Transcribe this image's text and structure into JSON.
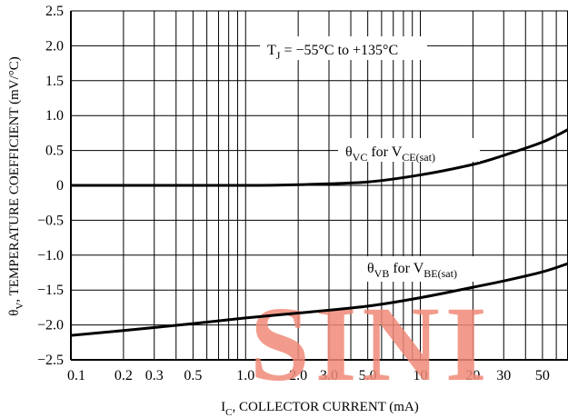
{
  "watermark": "SINI",
  "chart_data": {
    "type": "line",
    "x_scale": "log",
    "xlim": [
      0.1,
      70
    ],
    "ylim": [
      -2.5,
      2.5
    ],
    "grid": true,
    "xlabel": {
      "main": "I",
      "sub": "C",
      "rest": ", COLLECTOR CURRENT (mA)"
    },
    "ylabel": {
      "main": "θ",
      "sub": "V",
      "rest": ", TEMPERATURE COEFFICIENT (mV/°C)"
    },
    "x_ticks": [
      {
        "value": 0.1,
        "label": "0.1"
      },
      {
        "value": 0.2,
        "label": "0.2"
      },
      {
        "value": 0.3,
        "label": "0.3"
      },
      {
        "value": 0.5,
        "label": "0.5"
      },
      {
        "value": 1.0,
        "label": "1.0"
      },
      {
        "value": 2.0,
        "label": "2.0"
      },
      {
        "value": 3.0,
        "label": "3.0"
      },
      {
        "value": 5.0,
        "label": "5.0"
      },
      {
        "value": 10,
        "label": "10"
      },
      {
        "value": 20,
        "label": "20"
      },
      {
        "value": 30,
        "label": "30"
      },
      {
        "value": 50,
        "label": "50"
      }
    ],
    "y_ticks": [
      {
        "value": 2.5,
        "label": "2.5"
      },
      {
        "value": 2.0,
        "label": "2.0"
      },
      {
        "value": 1.5,
        "label": "1.5"
      },
      {
        "value": 1.0,
        "label": "1.0"
      },
      {
        "value": 0.5,
        "label": "0.5"
      },
      {
        "value": 0,
        "label": "0"
      },
      {
        "value": -0.5,
        "label": "−0.5"
      },
      {
        "value": -1.0,
        "label": "−1.0"
      },
      {
        "value": -1.5,
        "label": "−1.5"
      },
      {
        "value": -2.0,
        "label": "−2.0"
      },
      {
        "value": -2.5,
        "label": "−2.5"
      }
    ],
    "annotations": {
      "condition": {
        "pre": "T",
        "sub": "J",
        "post": " = −55°C to +135°C"
      }
    },
    "series": [
      {
        "name": "θVC for VCE(sat)",
        "label": {
          "theta": "θ",
          "theta_sub": "VC",
          "mid": " for ",
          "v": "V",
          "v_sub": "CE(sat)"
        },
        "x": [
          0.1,
          0.2,
          0.5,
          1,
          2,
          5,
          10,
          20,
          30,
          50,
          70
        ],
        "y": [
          0.0,
          0.0,
          0.0,
          0.0,
          0.01,
          0.05,
          0.15,
          0.3,
          0.43,
          0.62,
          0.8
        ]
      },
      {
        "name": "θVB for VBE(sat)",
        "label": {
          "theta": "θ",
          "theta_sub": "VB",
          "mid": " for ",
          "v": "V",
          "v_sub": "BE(sat)"
        },
        "x": [
          0.1,
          0.2,
          0.5,
          1,
          2,
          5,
          10,
          20,
          30,
          50,
          70
        ],
        "y": [
          -2.15,
          -2.08,
          -1.98,
          -1.9,
          -1.83,
          -1.73,
          -1.61,
          -1.46,
          -1.37,
          -1.24,
          -1.12
        ]
      }
    ]
  }
}
